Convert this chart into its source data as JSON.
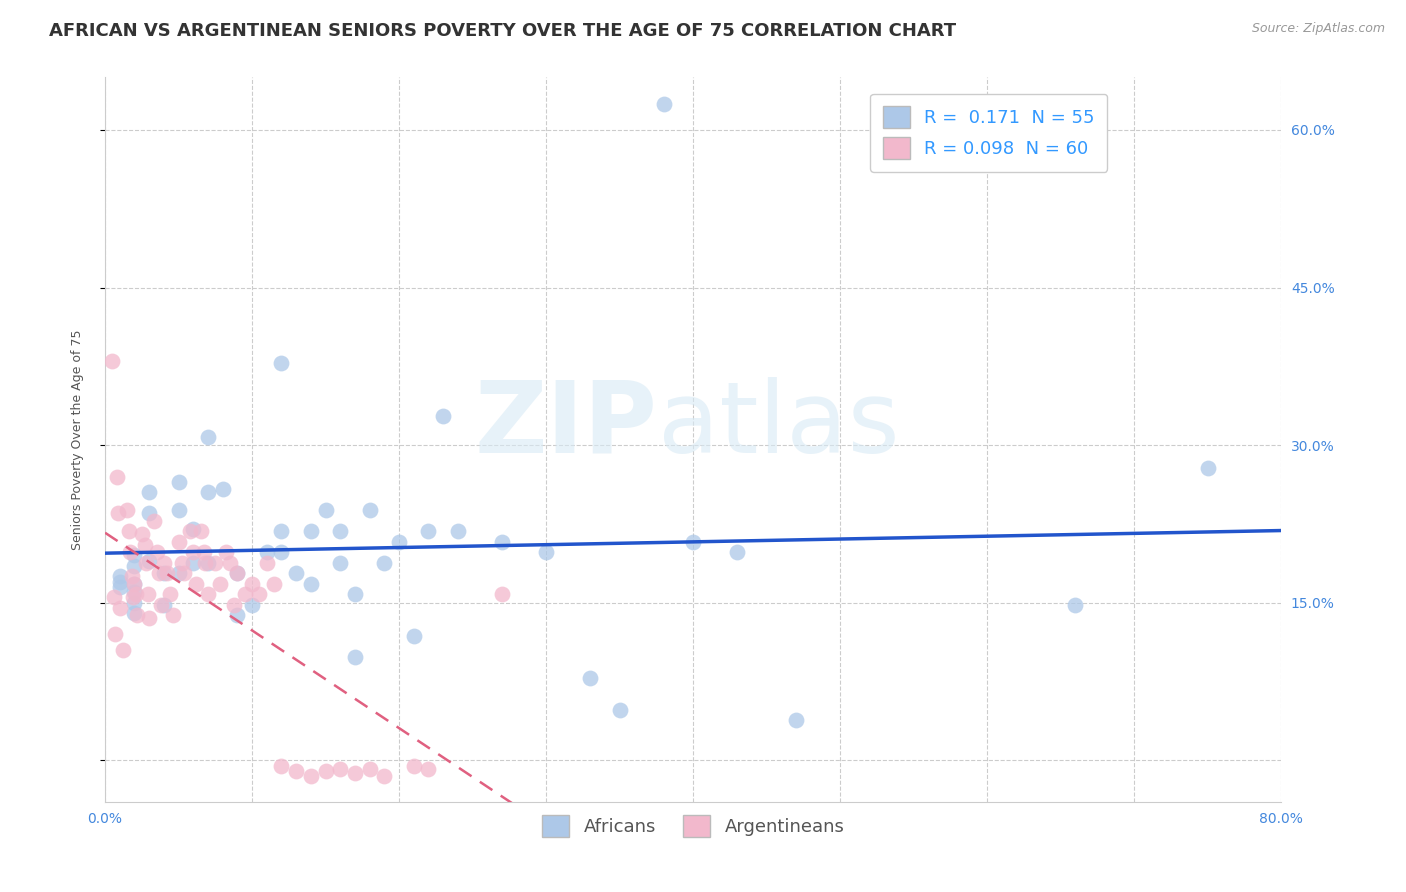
{
  "title": "AFRICAN VS ARGENTINEAN SENIORS POVERTY OVER THE AGE OF 75 CORRELATION CHART",
  "source": "Source: ZipAtlas.com",
  "ylabel": "Seniors Poverty Over the Age of 75",
  "xlim": [
    0.0,
    0.8
  ],
  "ylim": [
    -0.04,
    0.65
  ],
  "african_R": 0.171,
  "african_N": 55,
  "argentinean_R": 0.098,
  "argentinean_N": 60,
  "african_color": "#adc8e8",
  "argentinean_color": "#f2b8cc",
  "trendline_african_color": "#2255cc",
  "trendline_argentinean_color": "#e06080",
  "watermark_zip": "ZIP",
  "watermark_atlas": "atlas",
  "african_x": [
    0.38,
    0.01,
    0.01,
    0.01,
    0.02,
    0.02,
    0.02,
    0.02,
    0.02,
    0.02,
    0.03,
    0.03,
    0.03,
    0.04,
    0.04,
    0.05,
    0.05,
    0.05,
    0.06,
    0.06,
    0.07,
    0.07,
    0.07,
    0.08,
    0.09,
    0.09,
    0.1,
    0.11,
    0.12,
    0.12,
    0.12,
    0.13,
    0.14,
    0.14,
    0.15,
    0.16,
    0.16,
    0.17,
    0.17,
    0.18,
    0.19,
    0.2,
    0.21,
    0.22,
    0.23,
    0.24,
    0.27,
    0.3,
    0.33,
    0.35,
    0.4,
    0.43,
    0.47,
    0.66,
    0.75
  ],
  "african_y": [
    0.625,
    0.175,
    0.17,
    0.165,
    0.195,
    0.185,
    0.168,
    0.16,
    0.15,
    0.14,
    0.255,
    0.235,
    0.19,
    0.178,
    0.148,
    0.265,
    0.238,
    0.178,
    0.22,
    0.188,
    0.308,
    0.255,
    0.188,
    0.258,
    0.178,
    0.138,
    0.148,
    0.198,
    0.378,
    0.218,
    0.198,
    0.178,
    0.218,
    0.168,
    0.238,
    0.218,
    0.188,
    0.158,
    0.098,
    0.238,
    0.188,
    0.208,
    0.118,
    0.218,
    0.328,
    0.218,
    0.208,
    0.198,
    0.078,
    0.048,
    0.208,
    0.198,
    0.038,
    0.148,
    0.278
  ],
  "argentinean_x": [
    0.005,
    0.006,
    0.007,
    0.008,
    0.009,
    0.01,
    0.012,
    0.015,
    0.016,
    0.017,
    0.018,
    0.019,
    0.02,
    0.021,
    0.022,
    0.025,
    0.027,
    0.028,
    0.029,
    0.03,
    0.033,
    0.035,
    0.037,
    0.038,
    0.04,
    0.042,
    0.044,
    0.046,
    0.05,
    0.052,
    0.054,
    0.058,
    0.06,
    0.062,
    0.065,
    0.067,
    0.068,
    0.07,
    0.075,
    0.078,
    0.082,
    0.085,
    0.088,
    0.09,
    0.095,
    0.1,
    0.105,
    0.11,
    0.115,
    0.12,
    0.13,
    0.14,
    0.15,
    0.16,
    0.17,
    0.18,
    0.19,
    0.21,
    0.22,
    0.27
  ],
  "argentinean_y": [
    0.38,
    0.155,
    0.12,
    0.27,
    0.235,
    0.145,
    0.105,
    0.238,
    0.218,
    0.198,
    0.175,
    0.155,
    0.168,
    0.158,
    0.138,
    0.215,
    0.205,
    0.188,
    0.158,
    0.135,
    0.228,
    0.198,
    0.178,
    0.148,
    0.188,
    0.178,
    0.158,
    0.138,
    0.208,
    0.188,
    0.178,
    0.218,
    0.198,
    0.168,
    0.218,
    0.198,
    0.188,
    0.158,
    0.188,
    0.168,
    0.198,
    0.188,
    0.148,
    0.178,
    0.158,
    0.168,
    0.158,
    0.188,
    0.168,
    -0.005,
    -0.01,
    -0.015,
    -0.01,
    -0.008,
    -0.012,
    -0.008,
    -0.015,
    -0.005,
    -0.008,
    0.158
  ],
  "grid_color": "#cccccc",
  "background_color": "#ffffff",
  "title_fontsize": 13,
  "axis_label_fontsize": 9,
  "tick_fontsize": 10,
  "legend_fontsize": 13
}
